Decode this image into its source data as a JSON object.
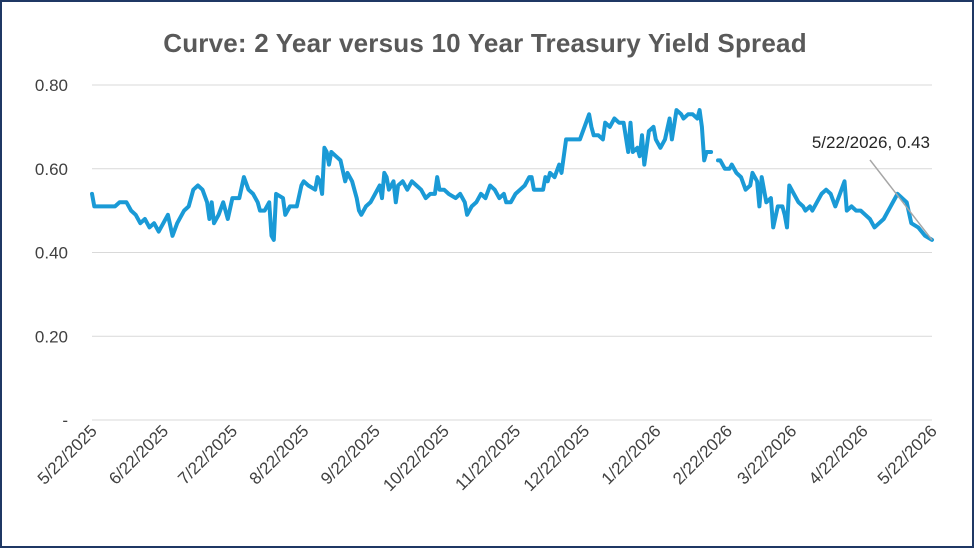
{
  "chart_data": {
    "type": "line",
    "title": "Curve: 2 Year versus 10 Year Treasury Yield Spread",
    "xlabel": "",
    "ylabel": "",
    "ylim": [
      0,
      0.8
    ],
    "y_ticks": [
      {
        "value": 0,
        "label": "-"
      },
      {
        "value": 0.2,
        "label": "0.20"
      },
      {
        "value": 0.4,
        "label": "0.40"
      },
      {
        "value": 0.6,
        "label": "0.60"
      },
      {
        "value": 0.8,
        "label": "0.80"
      }
    ],
    "x_ticks": [
      "5/22/2025",
      "6/22/2025",
      "7/22/2025",
      "8/22/2025",
      "9/22/2025",
      "10/22/2025",
      "11/22/2025",
      "12/22/2025",
      "1/22/2026",
      "2/22/2026",
      "3/22/2026",
      "4/22/2026",
      "5/22/2026"
    ],
    "grid": true,
    "line_color": "#1a9ad6",
    "annotation": {
      "text": "5/22/2026,  0.43",
      "x": "5/22/2026",
      "y": 0.43
    },
    "series": [
      {
        "values": [
          [
            "5/22/2025",
            0.54
          ],
          [
            "5/23/2025",
            0.51
          ],
          [
            "5/28/2025",
            0.51
          ],
          [
            "6/1/2025",
            0.51
          ],
          [
            "6/3/2025",
            0.52
          ],
          [
            "6/6/2025",
            0.52
          ],
          [
            "6/8/2025",
            0.5
          ],
          [
            "6/10/2025",
            0.49
          ],
          [
            "6/12/2025",
            0.47
          ],
          [
            "6/14/2025",
            0.48
          ],
          [
            "6/16/2025",
            0.46
          ],
          [
            "6/18/2025",
            0.47
          ],
          [
            "6/20/2025",
            0.45
          ],
          [
            "6/22/2025",
            0.47
          ],
          [
            "6/24/2025",
            0.49
          ],
          [
            "6/26/2025",
            0.44
          ],
          [
            "6/28/2025",
            0.47
          ],
          [
            "7/1/2025",
            0.5
          ],
          [
            "7/3/2025",
            0.51
          ],
          [
            "7/5/2025",
            0.55
          ],
          [
            "7/7/2025",
            0.56
          ],
          [
            "7/9/2025",
            0.55
          ],
          [
            "7/11/2025",
            0.52
          ],
          [
            "7/12/2025",
            0.48
          ],
          [
            "7/13/2025",
            0.52
          ],
          [
            "7/14/2025",
            0.47
          ],
          [
            "7/16/2025",
            0.49
          ],
          [
            "7/18/2025",
            0.52
          ],
          [
            "7/20/2025",
            0.48
          ],
          [
            "7/22/2025",
            0.53
          ],
          [
            "7/25/2025",
            0.53
          ],
          [
            "7/27/2025",
            0.58
          ],
          [
            "7/29/2025",
            0.55
          ],
          [
            "7/31/2025",
            0.54
          ],
          [
            "8/2/2025",
            0.52
          ],
          [
            "8/3/2025",
            0.5
          ],
          [
            "8/5/2025",
            0.5
          ],
          [
            "8/7/2025",
            0.52
          ],
          [
            "8/8/2025",
            0.44
          ],
          [
            "8/9/2025",
            0.43
          ],
          [
            "8/10/2025",
            0.54
          ],
          [
            "8/13/2025",
            0.53
          ],
          [
            "8/14/2025",
            0.49
          ],
          [
            "8/16/2025",
            0.51
          ],
          [
            "8/19/2025",
            0.51
          ],
          [
            "8/21/2025",
            0.56
          ],
          [
            "8/22/2025",
            0.57
          ],
          [
            "8/24/2025",
            0.56
          ],
          [
            "8/27/2025",
            0.55
          ],
          [
            "8/28/2025",
            0.58
          ],
          [
            "8/29/2025",
            0.57
          ],
          [
            "8/30/2025",
            0.54
          ],
          [
            "8/31/2025",
            0.65
          ],
          [
            "9/1/2025",
            0.64
          ],
          [
            "9/2/2025",
            0.61
          ],
          [
            "9/3/2025",
            0.64
          ],
          [
            "9/5/2025",
            0.63
          ],
          [
            "9/7/2025",
            0.62
          ],
          [
            "9/9/2025",
            0.57
          ],
          [
            "9/10/2025",
            0.59
          ],
          [
            "9/12/2025",
            0.57
          ],
          [
            "9/14/2025",
            0.53
          ],
          [
            "9/15/2025",
            0.5
          ],
          [
            "9/16/2025",
            0.49
          ],
          [
            "9/18/2025",
            0.51
          ],
          [
            "9/20/2025",
            0.52
          ],
          [
            "9/22/2025",
            0.54
          ],
          [
            "9/24/2025",
            0.56
          ],
          [
            "9/25/2025",
            0.53
          ],
          [
            "9/26/2025",
            0.59
          ],
          [
            "9/27/2025",
            0.58
          ],
          [
            "9/28/2025",
            0.55
          ],
          [
            "9/30/2025",
            0.57
          ],
          [
            "10/1/2025",
            0.52
          ],
          [
            "10/2/2025",
            0.56
          ],
          [
            "10/4/2025",
            0.57
          ],
          [
            "10/6/2025",
            0.55
          ],
          [
            "10/8/2025",
            0.57
          ],
          [
            "10/10/2025",
            0.56
          ],
          [
            "10/12/2025",
            0.55
          ],
          [
            "10/14/2025",
            0.53
          ],
          [
            "10/16/2025",
            0.54
          ],
          [
            "10/18/2025",
            0.54
          ],
          [
            "10/19/2025",
            0.58
          ],
          [
            "10/20/2025",
            0.55
          ],
          [
            "10/22/2025",
            0.55
          ],
          [
            "10/24/2025",
            0.54
          ],
          [
            "10/27/2025",
            0.53
          ],
          [
            "10/29/2025",
            0.54
          ],
          [
            "10/31/2025",
            0.52
          ],
          [
            "11/1/2025",
            0.49
          ],
          [
            "11/3/2025",
            0.51
          ],
          [
            "11/5/2025",
            0.52
          ],
          [
            "11/7/2025",
            0.54
          ],
          [
            "11/9/2025",
            0.53
          ],
          [
            "11/11/2025",
            0.56
          ],
          [
            "11/13/2025",
            0.55
          ],
          [
            "11/15/2025",
            0.53
          ],
          [
            "11/17/2025",
            0.54
          ],
          [
            "11/18/2025",
            0.52
          ],
          [
            "11/20/2025",
            0.52
          ],
          [
            "11/22/2025",
            0.54
          ],
          [
            "11/24/2025",
            0.55
          ],
          [
            "11/26/2025",
            0.56
          ],
          [
            "11/28/2025",
            0.58
          ],
          [
            "11/29/2025",
            0.58
          ],
          [
            "11/30/2025",
            0.55
          ],
          [
            "12/2/2025",
            0.55
          ],
          [
            "12/4/2025",
            0.55
          ],
          [
            "12/5/2025",
            0.58
          ],
          [
            "12/6/2025",
            0.57
          ],
          [
            "12/7/2025",
            0.59
          ],
          [
            "12/9/2025",
            0.58
          ],
          [
            "12/11/2025",
            0.61
          ],
          [
            "12/12/2025",
            0.59
          ],
          [
            "12/14/2025",
            0.67
          ],
          [
            "12/16/2025",
            0.67
          ],
          [
            "12/18/2025",
            0.67
          ],
          [
            "12/20/2025",
            0.67
          ],
          [
            "12/22/2025",
            0.7
          ],
          [
            "12/24/2025",
            0.73
          ],
          [
            "12/25/2025",
            0.7
          ],
          [
            "12/26/2025",
            0.68
          ],
          [
            "12/28/2025",
            0.68
          ],
          [
            "12/30/2025",
            0.67
          ],
          [
            "12/31/2025",
            0.71
          ],
          [
            "1/2/2026",
            0.7
          ],
          [
            "1/4/2026",
            0.72
          ],
          [
            "1/6/2026",
            0.71
          ],
          [
            "1/8/2026",
            0.71
          ],
          [
            "1/10/2026",
            0.64
          ],
          [
            "1/11/2026",
            0.71
          ],
          [
            "1/12/2026",
            0.64
          ],
          [
            "1/14/2026",
            0.65
          ],
          [
            "1/15/2026",
            0.63
          ],
          [
            "1/16/2026",
            0.68
          ],
          [
            "1/17/2026",
            0.61
          ],
          [
            "1/19/2026",
            0.69
          ],
          [
            "1/21/2026",
            0.7
          ],
          [
            "1/22/2026",
            0.67
          ],
          [
            "1/24/2026",
            0.65
          ],
          [
            "1/26/2026",
            0.67
          ],
          [
            "1/28/2026",
            0.72
          ],
          [
            "1/29/2026",
            0.67
          ],
          [
            "1/31/2026",
            0.74
          ],
          [
            "2/2/2026",
            0.73
          ],
          [
            "2/3/2026",
            0.72
          ],
          [
            "2/5/2026",
            0.73
          ],
          [
            "2/7/2026",
            0.73
          ],
          [
            "2/9/2026",
            0.72
          ],
          [
            "2/10/2026",
            0.74
          ],
          [
            "2/11/2026",
            0.7
          ],
          [
            "2/12/2026",
            0.62
          ],
          [
            "2/13/2026",
            0.64
          ],
          [
            "2/15/2026",
            0.64
          ],
          [
            "2/16/2026",
            null
          ],
          [
            "2/18/2026",
            0.62
          ],
          [
            "2/19/2026",
            0.62
          ],
          [
            "2/21/2026",
            0.6
          ],
          [
            "2/23/2026",
            0.6
          ],
          [
            "2/24/2026",
            0.61
          ],
          [
            "2/26/2026",
            0.59
          ],
          [
            "2/28/2026",
            0.58
          ],
          [
            "3/2/2026",
            0.55
          ],
          [
            "3/4/2026",
            0.56
          ],
          [
            "3/5/2026",
            0.59
          ],
          [
            "3/7/2026",
            0.57
          ],
          [
            "3/8/2026",
            0.51
          ],
          [
            "3/9/2026",
            0.58
          ],
          [
            "3/11/2026",
            0.52
          ],
          [
            "3/13/2026",
            0.53
          ],
          [
            "3/14/2026",
            0.46
          ],
          [
            "3/16/2026",
            0.51
          ],
          [
            "3/18/2026",
            0.51
          ],
          [
            "3/19/2026",
            0.49
          ],
          [
            "3/20/2026",
            0.46
          ],
          [
            "3/21/2026",
            0.56
          ],
          [
            "3/23/2026",
            0.54
          ],
          [
            "3/25/2026",
            0.52
          ],
          [
            "3/27/2026",
            0.51
          ],
          [
            "3/28/2026",
            0.5
          ],
          [
            "3/30/2026",
            0.51
          ],
          [
            "3/31/2026",
            0.5
          ],
          [
            "4/2/2026",
            0.52
          ],
          [
            "4/4/2026",
            0.54
          ],
          [
            "4/6/2026",
            0.55
          ],
          [
            "4/8/2026",
            0.54
          ],
          [
            "4/10/2026",
            0.51
          ],
          [
            "4/12/2026",
            0.54
          ],
          [
            "4/14/2026",
            0.57
          ],
          [
            "4/15/2026",
            0.5
          ],
          [
            "4/17/2026",
            0.51
          ],
          [
            "4/19/2026",
            0.5
          ],
          [
            "4/21/2026",
            0.5
          ],
          [
            "4/23/2026",
            0.49
          ],
          [
            "4/25/2026",
            0.48
          ],
          [
            "4/27/2026",
            0.46
          ],
          [
            "4/29/2026",
            0.47
          ],
          [
            "5/1/2026",
            0.48
          ],
          [
            "5/4/2026",
            0.51
          ],
          [
            "5/7/2026",
            0.54
          ],
          [
            "5/9/2026",
            0.53
          ],
          [
            "5/11/2026",
            0.52
          ],
          [
            "5/13/2026",
            0.47
          ],
          [
            "5/16/2026",
            0.46
          ],
          [
            "5/19/2026",
            0.44
          ],
          [
            "5/22/2026",
            0.43
          ]
        ]
      }
    ]
  }
}
